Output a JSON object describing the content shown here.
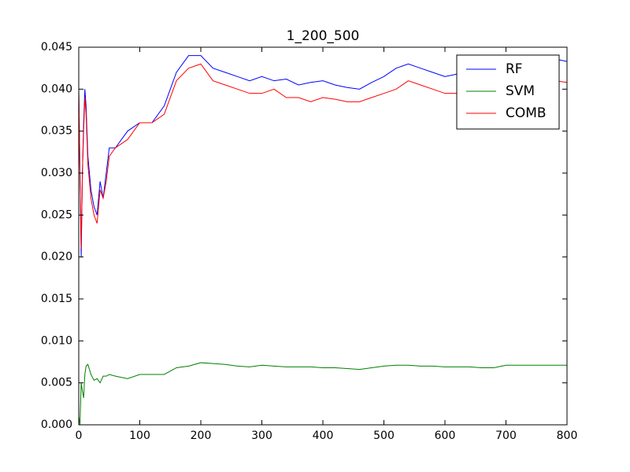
{
  "chart_data": {
    "type": "line",
    "title": "1_200_500",
    "x": [
      0,
      2,
      4,
      6,
      8,
      10,
      12,
      15,
      20,
      25,
      30,
      35,
      40,
      45,
      50,
      60,
      80,
      100,
      120,
      140,
      160,
      180,
      200,
      220,
      240,
      260,
      280,
      300,
      320,
      340,
      360,
      380,
      400,
      420,
      440,
      460,
      480,
      500,
      520,
      540,
      560,
      580,
      600,
      620,
      640,
      660,
      680,
      700,
      720,
      740,
      760,
      780,
      800
    ],
    "series": [
      {
        "name": "RF",
        "color": "#0000ff",
        "values": [
          0.04,
          0.03,
          0.02,
          0.03,
          0.036,
          0.04,
          0.038,
          0.032,
          0.028,
          0.026,
          0.025,
          0.029,
          0.027,
          0.03,
          0.033,
          0.033,
          0.035,
          0.036,
          0.036,
          0.038,
          0.042,
          0.044,
          0.044,
          0.0425,
          0.042,
          0.0415,
          0.041,
          0.0415,
          0.041,
          0.0412,
          0.0405,
          0.0408,
          0.041,
          0.0405,
          0.0402,
          0.04,
          0.0408,
          0.0415,
          0.0425,
          0.043,
          0.0425,
          0.042,
          0.0415,
          0.0418,
          0.042,
          0.0425,
          0.043,
          0.0432,
          0.0433,
          0.0434,
          0.0435,
          0.0436,
          0.0433
        ]
      },
      {
        "name": "SVM",
        "color": "#008000",
        "values": [
          0.001,
          0.0,
          0.005,
          0.004,
          0.0032,
          0.006,
          0.007,
          0.0072,
          0.006,
          0.0053,
          0.0055,
          0.005,
          0.0058,
          0.0058,
          0.006,
          0.0058,
          0.0055,
          0.006,
          0.006,
          0.006,
          0.0068,
          0.007,
          0.0074,
          0.0073,
          0.0072,
          0.007,
          0.0069,
          0.0071,
          0.007,
          0.0069,
          0.0069,
          0.0069,
          0.0068,
          0.0068,
          0.0067,
          0.0066,
          0.0068,
          0.007,
          0.0071,
          0.0071,
          0.007,
          0.007,
          0.0069,
          0.0069,
          0.0069,
          0.0068,
          0.0068,
          0.0071,
          0.0071,
          0.0071,
          0.0071,
          0.0071,
          0.0071
        ]
      },
      {
        "name": "COMB",
        "color": "#ff0000",
        "values": [
          0.04,
          0.03,
          0.021,
          0.03,
          0.035,
          0.039,
          0.037,
          0.031,
          0.027,
          0.025,
          0.024,
          0.028,
          0.027,
          0.029,
          0.032,
          0.033,
          0.034,
          0.036,
          0.036,
          0.037,
          0.041,
          0.0425,
          0.043,
          0.041,
          0.0405,
          0.04,
          0.0395,
          0.0395,
          0.04,
          0.039,
          0.039,
          0.0385,
          0.039,
          0.0388,
          0.0385,
          0.0385,
          0.039,
          0.0395,
          0.04,
          0.041,
          0.0405,
          0.04,
          0.0395,
          0.0395,
          0.04,
          0.0402,
          0.0405,
          0.041,
          0.041,
          0.0408,
          0.041,
          0.041,
          0.0408
        ]
      }
    ],
    "xlim": [
      0,
      800
    ],
    "xticks": [
      0,
      100,
      200,
      300,
      400,
      500,
      600,
      700,
      800
    ],
    "ylim": [
      0,
      0.045
    ],
    "yticks": [
      {
        "value": 0,
        "label": "0.000"
      },
      {
        "value": 0.005,
        "label": "0.005"
      },
      {
        "value": 0.01,
        "label": "0.010"
      },
      {
        "value": 0.015,
        "label": "0.015"
      },
      {
        "value": 0.02,
        "label": "0.020"
      },
      {
        "value": 0.025,
        "label": "0.025"
      },
      {
        "value": 0.03,
        "label": "0.030"
      },
      {
        "value": 0.035,
        "label": "0.035"
      },
      {
        "value": 0.04,
        "label": "0.040"
      },
      {
        "value": 0.045,
        "label": "0.045"
      }
    ],
    "legend": "upper right"
  }
}
